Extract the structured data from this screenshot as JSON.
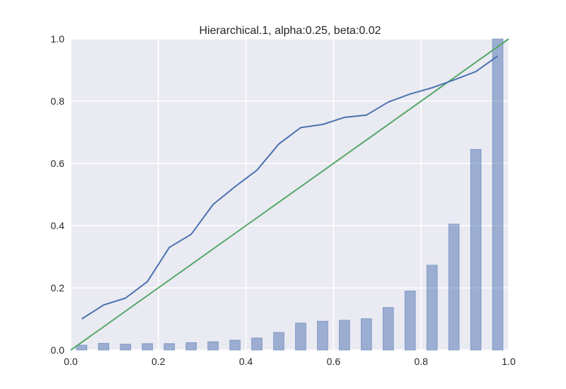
{
  "chart_data": {
    "type": "line",
    "title": "Hierarchical.1, alpha:0.25, beta:0.02",
    "xlabel": "",
    "ylabel": "",
    "xlim": [
      0.0,
      1.0
    ],
    "ylim": [
      0.0,
      1.0
    ],
    "grid": true,
    "x_ticks": [
      "0.0",
      "0.2",
      "0.4",
      "0.6",
      "0.8",
      "1.0"
    ],
    "y_ticks": [
      "0.0",
      "0.2",
      "0.4",
      "0.6",
      "0.8",
      "1.0"
    ],
    "calibration_line": {
      "x": [
        0.025,
        0.075,
        0.125,
        0.175,
        0.225,
        0.275,
        0.325,
        0.375,
        0.425,
        0.475,
        0.525,
        0.575,
        0.625,
        0.675,
        0.725,
        0.775,
        0.825,
        0.875,
        0.925,
        0.975
      ],
      "y": [
        0.1,
        0.145,
        0.167,
        0.22,
        0.33,
        0.372,
        0.468,
        0.525,
        0.578,
        0.662,
        0.715,
        0.725,
        0.748,
        0.755,
        0.797,
        0.823,
        0.843,
        0.868,
        0.895,
        0.945
      ]
    },
    "diagonal": {
      "x": [
        0.0,
        1.0
      ],
      "y": [
        0.0,
        1.0
      ]
    },
    "histogram": {
      "x": [
        0.025,
        0.075,
        0.125,
        0.175,
        0.225,
        0.275,
        0.325,
        0.375,
        0.425,
        0.475,
        0.525,
        0.575,
        0.625,
        0.675,
        0.725,
        0.775,
        0.825,
        0.875,
        0.925,
        0.975
      ],
      "values": [
        0.016,
        0.022,
        0.019,
        0.021,
        0.021,
        0.024,
        0.027,
        0.032,
        0.039,
        0.057,
        0.087,
        0.093,
        0.096,
        0.101,
        0.137,
        0.19,
        0.273,
        0.405,
        0.645,
        1.0
      ],
      "bar_width": 0.024
    },
    "colors": {
      "background": "#EAEAF2",
      "grid": "#FFFFFF",
      "calibration_line": "#4C72B0",
      "diagonal": "#55A868",
      "bars": "#4C72B0"
    }
  }
}
